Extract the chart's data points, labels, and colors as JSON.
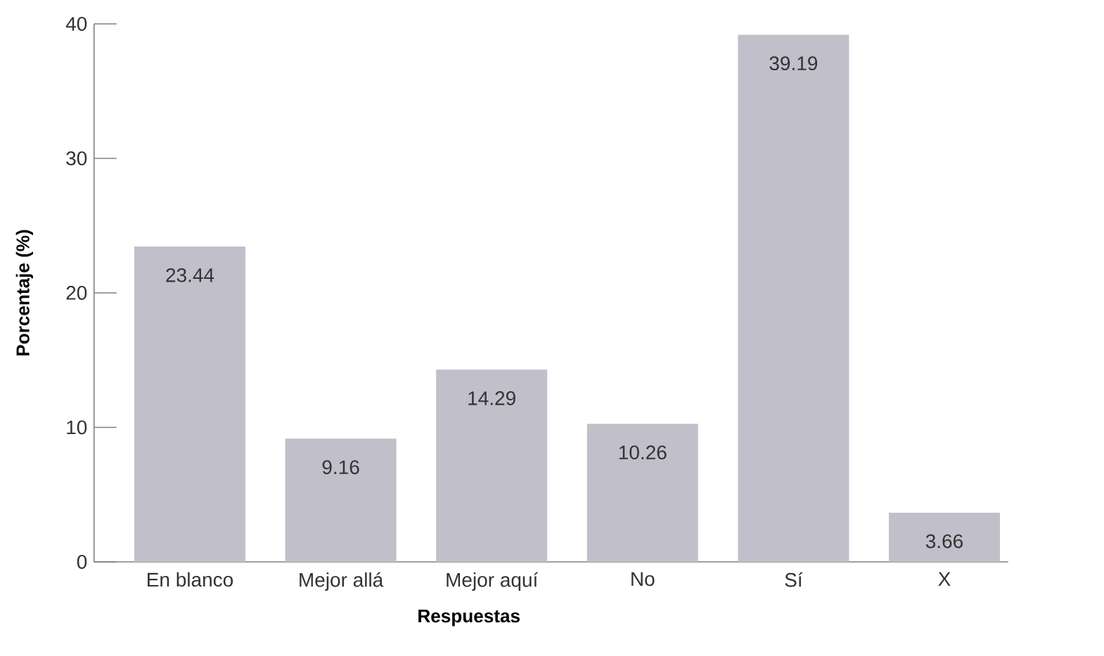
{
  "chart_data": {
    "type": "bar",
    "xlabel": "Respuestas",
    "ylabel": "Porcentaje (%)",
    "categories": [
      "En blanco",
      "Mejor allá",
      "Mejor aquí",
      "No",
      "Sí",
      "X"
    ],
    "values": [
      23.44,
      9.16,
      14.29,
      10.26,
      39.19,
      3.66
    ],
    "color": "#c1bfca",
    "ylim": [
      0,
      40
    ],
    "yticks": [
      0,
      10,
      20,
      30,
      40
    ],
    "data_labels": true
  }
}
